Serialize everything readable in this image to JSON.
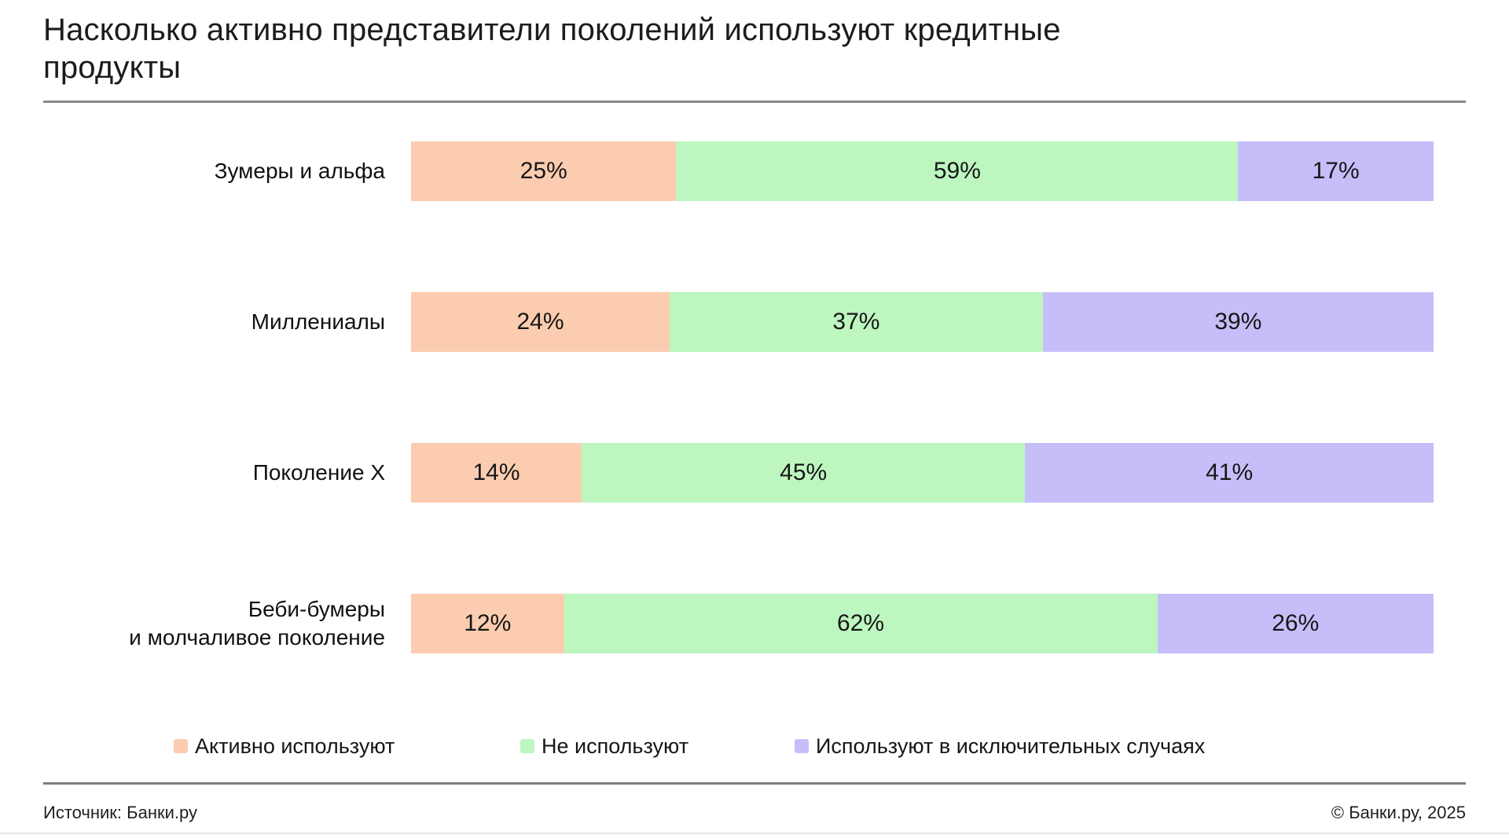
{
  "header": {
    "title_display": "Насколько активно представители поколений используют кредитные\nпродукты"
  },
  "chart_data": {
    "type": "bar",
    "orientation": "horizontal",
    "stacked": true,
    "title": "Насколько активно представители поколений используют кредитные продукты",
    "categories": [
      "Зумеры и альфа",
      "Миллениалы",
      "Поколение X",
      "Беби-бумеры и молчаливое поколение"
    ],
    "categories_display": [
      "Зумеры и альфа",
      "Миллениалы",
      "Поколение X",
      "Беби-бумеры\nи молчаливое поколение"
    ],
    "series": [
      {
        "key": "active",
        "name": "Активно используют",
        "color": "#FCCCB0",
        "values": [
          25,
          24,
          14,
          12
        ]
      },
      {
        "key": "not-using",
        "name": "Не используют",
        "color": "#BDF6BF",
        "values": [
          59,
          37,
          45,
          62
        ]
      },
      {
        "key": "exceptional",
        "name": "Используют в исключительных случаях",
        "color": "#C6BEF9",
        "values": [
          17,
          39,
          41,
          26
        ]
      }
    ],
    "value_suffix": "%",
    "xlabel": "",
    "ylabel": "",
    "axis_ticks_visible": false,
    "grid": false,
    "legend_position": "bottom"
  },
  "footer": {
    "source": "Источник: Банки.ру",
    "copyright": "© Банки.ру, 2025"
  }
}
